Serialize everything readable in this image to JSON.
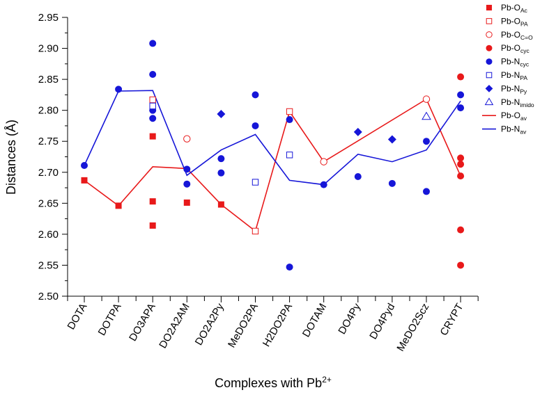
{
  "chart_data": {
    "type": "scatter",
    "ylabel_parts": [
      "Distances  (",
      "Å",
      ")"
    ],
    "xlabel_parts": {
      "main": "Complexes with Pb",
      "sup": "2+"
    },
    "categories": [
      "DOTA",
      "DOTPA",
      "DO3APA",
      "DO2A2AM",
      "DO2A2Py",
      "MeDO2PA",
      "H2DO2PA",
      "DOTAM",
      "DO4Py",
      "DO4Pyd",
      "MeDO2Scz",
      "CRYPT"
    ],
    "ylim": [
      2.5,
      2.95
    ],
    "yticks": [
      "2.50",
      "2.55",
      "2.60",
      "2.65",
      "2.70",
      "2.75",
      "2.80",
      "2.85",
      "2.90",
      "2.95"
    ],
    "colors": {
      "red": "#e8191a",
      "blue": "#1616d8"
    },
    "series": [
      {
        "name": "Pb-O_Ac",
        "label_main": "Pb-O",
        "label_sub": "Ac",
        "marker": "square-filled",
        "color": "red",
        "points": [
          [
            0,
            2.687
          ],
          [
            1,
            2.646
          ],
          [
            2,
            2.758
          ],
          [
            2,
            2.653
          ],
          [
            2,
            2.614
          ],
          [
            3,
            2.651
          ],
          [
            4,
            2.648
          ]
        ]
      },
      {
        "name": "Pb-O_PA",
        "label_main": "Pb-O",
        "label_sub": "PA",
        "marker": "square-open",
        "color": "red",
        "points": [
          [
            2,
            2.817
          ],
          [
            5,
            2.605
          ],
          [
            6,
            2.798
          ]
        ]
      },
      {
        "name": "Pb-O_C=O",
        "label_main": "Pb-O",
        "label_sub": "C=O",
        "marker": "circle-open",
        "color": "red",
        "points": [
          [
            3,
            2.754
          ],
          [
            7,
            2.717
          ],
          [
            10,
            2.818
          ]
        ]
      },
      {
        "name": "Pb-O_cyc",
        "label_main": "Pb-O",
        "label_sub": "cyc",
        "marker": "circle-filled",
        "color": "red",
        "points": [
          [
            11,
            2.854
          ],
          [
            11,
            2.723
          ],
          [
            11,
            2.713
          ],
          [
            11,
            2.694
          ],
          [
            11,
            2.607
          ],
          [
            11,
            2.55
          ]
        ]
      },
      {
        "name": "Pb-N_cyc",
        "label_main": "Pb-N",
        "label_sub": "cyc",
        "marker": "circle-filled",
        "color": "blue",
        "points": [
          [
            0,
            2.711
          ],
          [
            1,
            2.834
          ],
          [
            2,
            2.908
          ],
          [
            2,
            2.858
          ],
          [
            2,
            2.8
          ],
          [
            2,
            2.787
          ],
          [
            3,
            2.705
          ],
          [
            3,
            2.681
          ],
          [
            4,
            2.722
          ],
          [
            4,
            2.699
          ],
          [
            5,
            2.825
          ],
          [
            5,
            2.775
          ],
          [
            6,
            2.785
          ],
          [
            6,
            2.547
          ],
          [
            7,
            2.68
          ],
          [
            8,
            2.693
          ],
          [
            9,
            2.682
          ],
          [
            10,
            2.75
          ],
          [
            10,
            2.669
          ],
          [
            11,
            2.825
          ],
          [
            11,
            2.804
          ]
        ]
      },
      {
        "name": "Pb-N_PA",
        "label_main": "Pb-N",
        "label_sub": "PA",
        "marker": "square-open",
        "color": "blue",
        "points": [
          [
            2,
            2.807
          ],
          [
            5,
            2.684
          ],
          [
            6,
            2.728
          ]
        ]
      },
      {
        "name": "Pb-N_Py",
        "label_main": "Pb-N",
        "label_sub": "Py",
        "marker": "diamond-filled",
        "color": "blue",
        "points": [
          [
            4,
            2.794
          ],
          [
            8,
            2.765
          ],
          [
            9,
            2.753
          ]
        ]
      },
      {
        "name": "Pb-N_imido",
        "label_main": "Pb-N",
        "label_sub": "imido",
        "marker": "triangle-open",
        "color": "blue",
        "points": [
          [
            10,
            2.79
          ]
        ]
      },
      {
        "name": "Pb-O_av",
        "label_main": "Pb-O",
        "label_sub": "av",
        "marker": "line",
        "color": "red",
        "line": [
          [
            0,
            2.687
          ],
          [
            1,
            2.646
          ],
          [
            2,
            2.709
          ],
          [
            3,
            2.706
          ],
          [
            4,
            2.648
          ],
          [
            5,
            2.605
          ],
          [
            6,
            2.798
          ],
          [
            7,
            2.717
          ],
          [
            10,
            2.818
          ],
          [
            11,
            2.694
          ]
        ]
      },
      {
        "name": "Pb-N_av",
        "label_main": "Pb-N",
        "label_sub": "av",
        "marker": "line",
        "color": "blue",
        "line": [
          [
            0,
            2.711
          ],
          [
            1,
            2.831
          ],
          [
            2,
            2.832
          ],
          [
            3,
            2.695
          ],
          [
            4,
            2.736
          ],
          [
            5,
            2.761
          ],
          [
            6,
            2.687
          ],
          [
            7,
            2.68
          ],
          [
            8,
            2.729
          ],
          [
            9,
            2.717
          ],
          [
            10,
            2.736
          ],
          [
            11,
            2.815
          ]
        ]
      }
    ]
  }
}
